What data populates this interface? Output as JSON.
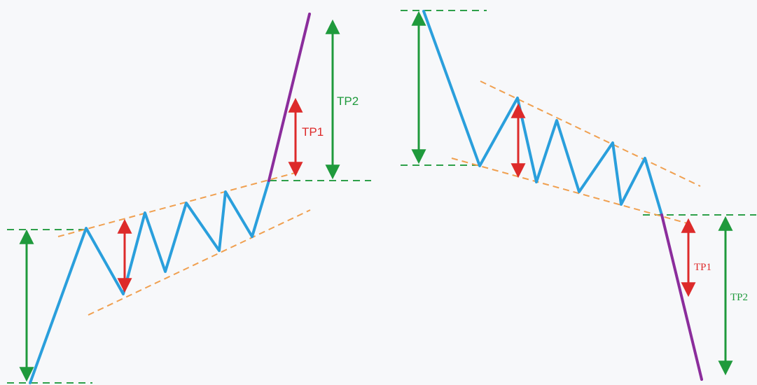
{
  "colors": {
    "price": "#2a9fdc",
    "breakout": "#8b2d9c",
    "channel": "#f0a050",
    "level": "#2ea04a",
    "target_green": "#1f9a3c",
    "target_red": "#dd2a2a"
  },
  "left_pattern": {
    "tp1_label": "TP1",
    "tp2_label": "TP2"
  },
  "right_pattern": {
    "tp1_label": "TP1",
    "tp2_label": "TP2"
  }
}
